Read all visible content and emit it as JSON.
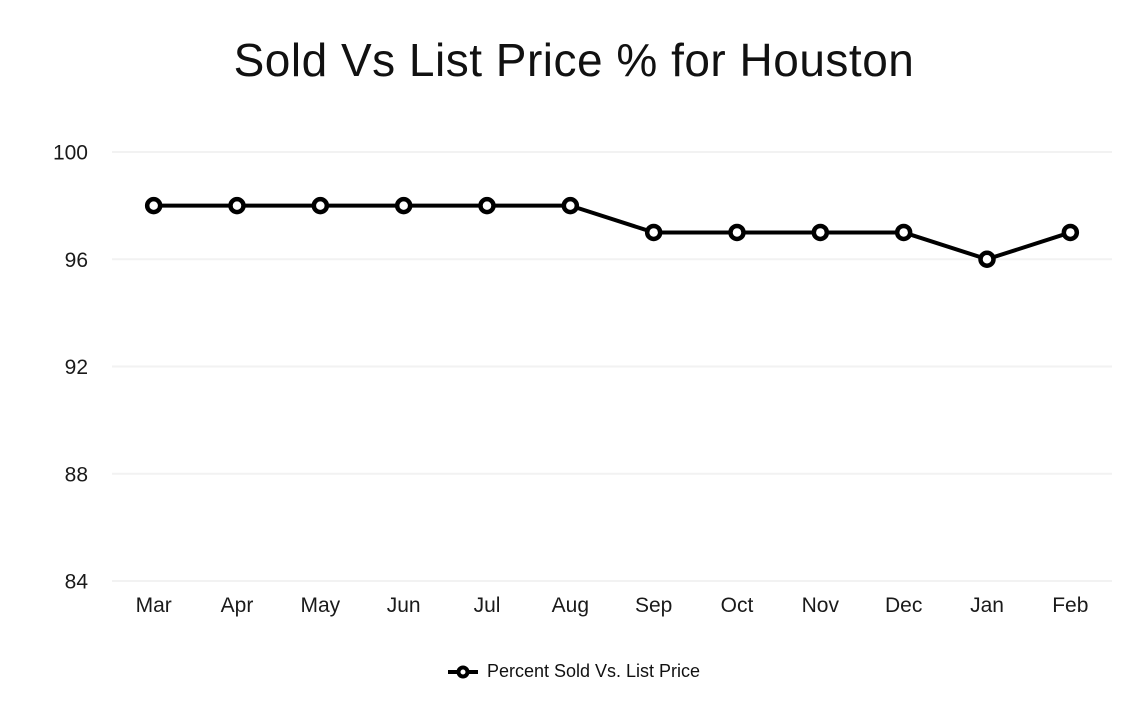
{
  "colors": {
    "line": "#000000",
    "marker_fill": "#ffffff",
    "gridline": "#f2f2f2",
    "axis_text": "#1a1a1a",
    "background": "#ffffff"
  },
  "chart_data": {
    "type": "line",
    "title": "Sold Vs List Price % for Houston",
    "categories": [
      "Mar",
      "Apr",
      "May",
      "Jun",
      "Jul",
      "Aug",
      "Sep",
      "Oct",
      "Nov",
      "Dec",
      "Jan",
      "Feb"
    ],
    "series": [
      {
        "name": "Percent Sold Vs. List Price",
        "values": [
          98,
          98,
          98,
          98,
          98,
          98,
          97,
          97,
          97,
          97,
          96,
          97
        ]
      }
    ],
    "xlabel": "",
    "ylabel": "",
    "ylim": [
      84,
      100
    ],
    "yticks": [
      84,
      88,
      92,
      96,
      100
    ],
    "grid": "horizontal",
    "legend_position": "bottom",
    "marker": "hollow-circle"
  }
}
